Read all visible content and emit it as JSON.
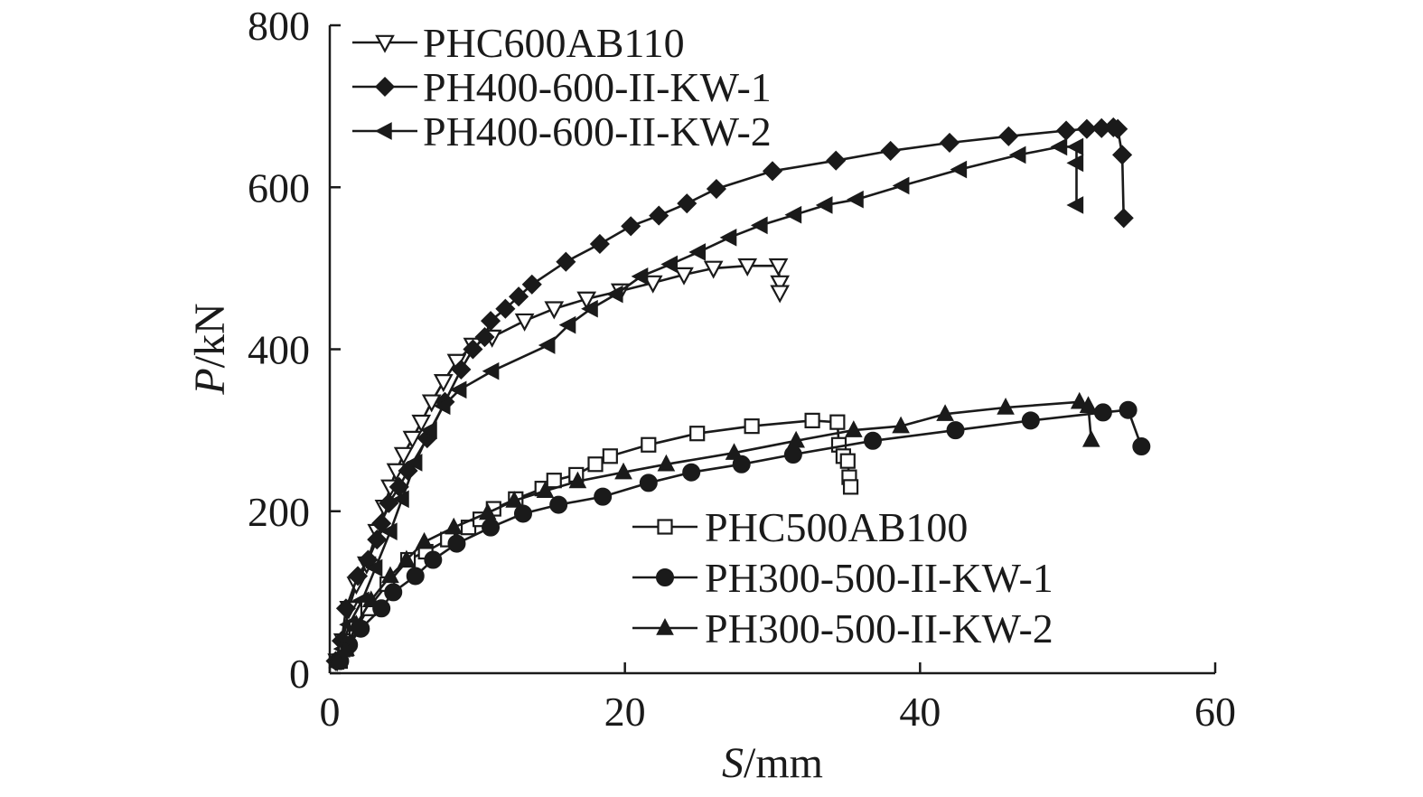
{
  "chart_data": {
    "type": "line",
    "xlabel": {
      "italic": "S",
      "rest": "/mm"
    },
    "ylabel": {
      "italic": "P",
      "rest": "/kN"
    },
    "xlim": [
      0,
      60
    ],
    "ylim": [
      0,
      800
    ],
    "xticks": [
      "0",
      "20",
      "40",
      "60"
    ],
    "yticks": [
      "0",
      "200",
      "400",
      "600",
      "800"
    ],
    "grid": false,
    "legend_groups": [
      {
        "placement": "top-left",
        "series": [
          0,
          1,
          2
        ]
      },
      {
        "placement": "bottom-right",
        "series": [
          3,
          4,
          5
        ]
      }
    ],
    "series": [
      {
        "name": "PHC600AB110",
        "marker": "triangle-down-open",
        "points": [
          [
            0.5,
            15
          ],
          [
            0.9,
            40
          ],
          [
            1.3,
            80
          ],
          [
            1.8,
            110
          ],
          [
            2.5,
            135
          ],
          [
            3.2,
            175
          ],
          [
            3.7,
            205
          ],
          [
            4.1,
            230
          ],
          [
            4.5,
            250
          ],
          [
            5,
            270
          ],
          [
            5.6,
            290
          ],
          [
            6.2,
            310
          ],
          [
            6.9,
            335
          ],
          [
            7.7,
            360
          ],
          [
            8.6,
            385
          ],
          [
            9.7,
            405
          ],
          [
            11,
            415
          ],
          [
            13.2,
            435
          ],
          [
            15.2,
            450
          ],
          [
            17.4,
            462
          ],
          [
            19.7,
            472
          ],
          [
            21.9,
            482
          ],
          [
            24,
            492
          ],
          [
            26,
            500
          ],
          [
            28.3,
            503
          ],
          [
            30.4,
            503
          ],
          [
            30.5,
            482
          ],
          [
            30.5,
            470
          ]
        ]
      },
      {
        "name": "PH400-600-II-KW-1",
        "marker": "diamond-filled",
        "points": [
          [
            0.4,
            15
          ],
          [
            0.8,
            40
          ],
          [
            1.1,
            80
          ],
          [
            1.9,
            120
          ],
          [
            2.6,
            140
          ],
          [
            3.2,
            165
          ],
          [
            3.5,
            185
          ],
          [
            4,
            210
          ],
          [
            4.7,
            230
          ],
          [
            5.3,
            250
          ],
          [
            6.6,
            290
          ],
          [
            7.8,
            335
          ],
          [
            8.9,
            375
          ],
          [
            9.7,
            400
          ],
          [
            10.5,
            415
          ],
          [
            10.9,
            435
          ],
          [
            11.9,
            450
          ],
          [
            12.8,
            465
          ],
          [
            13.7,
            480
          ],
          [
            16,
            508
          ],
          [
            18.3,
            530
          ],
          [
            20.4,
            552
          ],
          [
            22.3,
            565
          ],
          [
            24.2,
            580
          ],
          [
            26.2,
            598
          ],
          [
            30,
            620
          ],
          [
            34.3,
            633
          ],
          [
            38,
            645
          ],
          [
            42,
            655
          ],
          [
            46,
            663
          ],
          [
            49.9,
            670
          ],
          [
            51.3,
            672
          ],
          [
            52.3,
            673
          ],
          [
            53.1,
            674
          ],
          [
            53.4,
            672
          ],
          [
            53.7,
            640
          ],
          [
            53.8,
            562
          ]
        ]
      },
      {
        "name": "PH400-600-II-KW-2",
        "marker": "triangle-left-filled",
        "points": [
          [
            0.5,
            15
          ],
          [
            0.9,
            30
          ],
          [
            1.3,
            60
          ],
          [
            2.2,
            90
          ],
          [
            3.1,
            130
          ],
          [
            4.1,
            175
          ],
          [
            4.9,
            215
          ],
          [
            5.8,
            260
          ],
          [
            6.8,
            300
          ],
          [
            7.7,
            330
          ],
          [
            8.8,
            350
          ],
          [
            11,
            373
          ],
          [
            14.8,
            405
          ],
          [
            16.2,
            430
          ],
          [
            17.7,
            450
          ],
          [
            19.4,
            468
          ],
          [
            21.1,
            490
          ],
          [
            23.1,
            505
          ],
          [
            25,
            520
          ],
          [
            27.1,
            538
          ],
          [
            29.2,
            553
          ],
          [
            31.5,
            566
          ],
          [
            33.6,
            578
          ],
          [
            35.7,
            585
          ],
          [
            38.8,
            602
          ],
          [
            42.7,
            622
          ],
          [
            46.7,
            640
          ],
          [
            49.5,
            650
          ],
          [
            50.6,
            650
          ],
          [
            50.6,
            630
          ],
          [
            50.6,
            578
          ]
        ]
      },
      {
        "name": "PHC500AB100",
        "marker": "square-open",
        "points": [
          [
            0.7,
            15
          ],
          [
            1.1,
            30
          ],
          [
            1.8,
            55
          ],
          [
            2.6,
            80
          ],
          [
            3.9,
            110
          ],
          [
            5.3,
            140
          ],
          [
            6.5,
            150
          ],
          [
            8,
            165
          ],
          [
            9.4,
            180
          ],
          [
            10.2,
            190
          ],
          [
            11.1,
            203
          ],
          [
            12.6,
            215
          ],
          [
            14.4,
            228
          ],
          [
            15.2,
            238
          ],
          [
            16.7,
            245
          ],
          [
            18,
            258
          ],
          [
            19,
            268
          ],
          [
            21.6,
            282
          ],
          [
            24.9,
            296
          ],
          [
            28.6,
            305
          ],
          [
            32.7,
            312
          ],
          [
            34.4,
            310
          ],
          [
            34.5,
            282
          ],
          [
            34.8,
            268
          ],
          [
            35.1,
            262
          ],
          [
            35.2,
            242
          ],
          [
            35.3,
            230
          ]
        ]
      },
      {
        "name": "PH300-500-II-KW-1",
        "marker": "circle-filled",
        "points": [
          [
            0.7,
            15
          ],
          [
            1.3,
            35
          ],
          [
            2.1,
            55
          ],
          [
            3.5,
            80
          ],
          [
            4.3,
            100
          ],
          [
            5.8,
            120
          ],
          [
            7,
            140
          ],
          [
            8.6,
            160
          ],
          [
            10.9,
            180
          ],
          [
            13.1,
            197
          ],
          [
            15.5,
            208
          ],
          [
            18.5,
            218
          ],
          [
            21.6,
            235
          ],
          [
            24.5,
            248
          ],
          [
            27.9,
            258
          ],
          [
            31.4,
            270
          ],
          [
            36.8,
            287
          ],
          [
            42.4,
            300
          ],
          [
            47.5,
            312
          ],
          [
            52.4,
            322
          ],
          [
            54.1,
            325
          ],
          [
            55,
            280
          ]
        ]
      },
      {
        "name": "PH300-500-II-KW-2",
        "marker": "triangle-up-filled",
        "points": [
          [
            0.5,
            15
          ],
          [
            1.1,
            30
          ],
          [
            1.8,
            60
          ],
          [
            2.8,
            90
          ],
          [
            4.1,
            120
          ],
          [
            5.2,
            140
          ],
          [
            6.4,
            162
          ],
          [
            8.4,
            180
          ],
          [
            10.7,
            198
          ],
          [
            12.5,
            213
          ],
          [
            14.6,
            225
          ],
          [
            16.8,
            237
          ],
          [
            19.9,
            248
          ],
          [
            22.8,
            258
          ],
          [
            27.4,
            272
          ],
          [
            31.6,
            287
          ],
          [
            35.5,
            300
          ],
          [
            38.7,
            305
          ],
          [
            41.7,
            320
          ],
          [
            45.8,
            328
          ],
          [
            50.8,
            335
          ],
          [
            51.4,
            330
          ],
          [
            51.6,
            288
          ]
        ]
      }
    ]
  }
}
